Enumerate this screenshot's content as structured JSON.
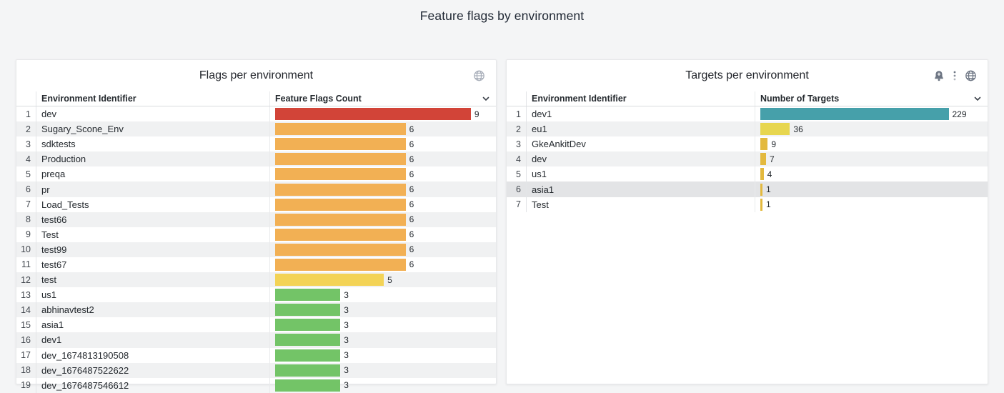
{
  "page": {
    "title": "Feature flags by environment",
    "background": "#F4F5F6"
  },
  "panels": [
    {
      "title": "Flags per environment",
      "icons": [
        "globe-icon"
      ],
      "sort_icon": "chevron-down",
      "columns": [
        "Environment Identifier",
        "Feature Flags Count"
      ],
      "max": 9,
      "rows": [
        {
          "n": 1,
          "env": "dev",
          "value": 9,
          "color": "#D24438"
        },
        {
          "n": 2,
          "env": "Sugary_Scone_Env",
          "value": 6,
          "color": "#F2B054"
        },
        {
          "n": 3,
          "env": "sdktests",
          "value": 6,
          "color": "#F2B054"
        },
        {
          "n": 4,
          "env": "Production",
          "value": 6,
          "color": "#F2B054"
        },
        {
          "n": 5,
          "env": "preqa",
          "value": 6,
          "color": "#F2B054"
        },
        {
          "n": 6,
          "env": "pr",
          "value": 6,
          "color": "#F2B054"
        },
        {
          "n": 7,
          "env": "Load_Tests",
          "value": 6,
          "color": "#F2B054"
        },
        {
          "n": 8,
          "env": "test66",
          "value": 6,
          "color": "#F2B054"
        },
        {
          "n": 9,
          "env": "Test",
          "value": 6,
          "color": "#F2B054"
        },
        {
          "n": 10,
          "env": "test99",
          "value": 6,
          "color": "#F2B054"
        },
        {
          "n": 11,
          "env": "test67",
          "value": 6,
          "color": "#F2B054"
        },
        {
          "n": 12,
          "env": "test",
          "value": 5,
          "color": "#F3D356"
        },
        {
          "n": 13,
          "env": "us1",
          "value": 3,
          "color": "#73C467"
        },
        {
          "n": 14,
          "env": "abhinavtest2",
          "value": 3,
          "color": "#73C467"
        },
        {
          "n": 15,
          "env": "asia1",
          "value": 3,
          "color": "#73C467"
        },
        {
          "n": 16,
          "env": "dev1",
          "value": 3,
          "color": "#73C467"
        },
        {
          "n": 17,
          "env": "dev_1674813190508",
          "value": 3,
          "color": "#73C467"
        },
        {
          "n": 18,
          "env": "dev_1676487522622",
          "value": 3,
          "color": "#73C467"
        },
        {
          "n": 19,
          "env": "dev_1676487546612",
          "value": 3,
          "color": "#73C467"
        }
      ]
    },
    {
      "title": "Targets per environment",
      "icons": [
        "bell-plus-icon",
        "kebab-menu-icon",
        "globe-icon"
      ],
      "sort_icon": "chevron-down",
      "columns": [
        "Environment Identifier",
        "Number of Targets"
      ],
      "max": 229,
      "rows": [
        {
          "n": 1,
          "env": "dev1",
          "value": 229,
          "color": "#46A0AA"
        },
        {
          "n": 2,
          "env": "eu1",
          "value": 36,
          "color": "#E7D64F"
        },
        {
          "n": 3,
          "env": "GkeAnkitDev",
          "value": 9,
          "color": "#E3B93E"
        },
        {
          "n": 4,
          "env": "dev",
          "value": 7,
          "color": "#E3B93E"
        },
        {
          "n": 5,
          "env": "us1",
          "value": 4,
          "color": "#E3B93E"
        },
        {
          "n": 6,
          "env": "asia1",
          "value": 1,
          "color": "#E3B93E",
          "highlight": true
        },
        {
          "n": 7,
          "env": "Test",
          "value": 1,
          "color": "#E3B93E"
        }
      ]
    }
  ],
  "chart_data": [
    {
      "type": "bar",
      "title": "Flags per environment",
      "categories": [
        "dev",
        "Sugary_Scone_Env",
        "sdktests",
        "Production",
        "preqa",
        "pr",
        "Load_Tests",
        "test66",
        "Test",
        "test99",
        "test67",
        "test",
        "us1",
        "abhinavtest2",
        "asia1",
        "dev1",
        "dev_1674813190508",
        "dev_1676487522622",
        "dev_1676487546612"
      ],
      "values": [
        9,
        6,
        6,
        6,
        6,
        6,
        6,
        6,
        6,
        6,
        6,
        5,
        3,
        3,
        3,
        3,
        3,
        3,
        3
      ],
      "xlabel": "Feature Flags Count",
      "ylabel": "Environment Identifier",
      "xlim": [
        0,
        9
      ]
    },
    {
      "type": "bar",
      "title": "Targets per environment",
      "categories": [
        "dev1",
        "eu1",
        "GkeAnkitDev",
        "dev",
        "us1",
        "asia1",
        "Test"
      ],
      "values": [
        229,
        36,
        9,
        7,
        4,
        1,
        1
      ],
      "xlabel": "Number of Targets",
      "ylabel": "Environment Identifier",
      "xlim": [
        0,
        229
      ]
    }
  ]
}
